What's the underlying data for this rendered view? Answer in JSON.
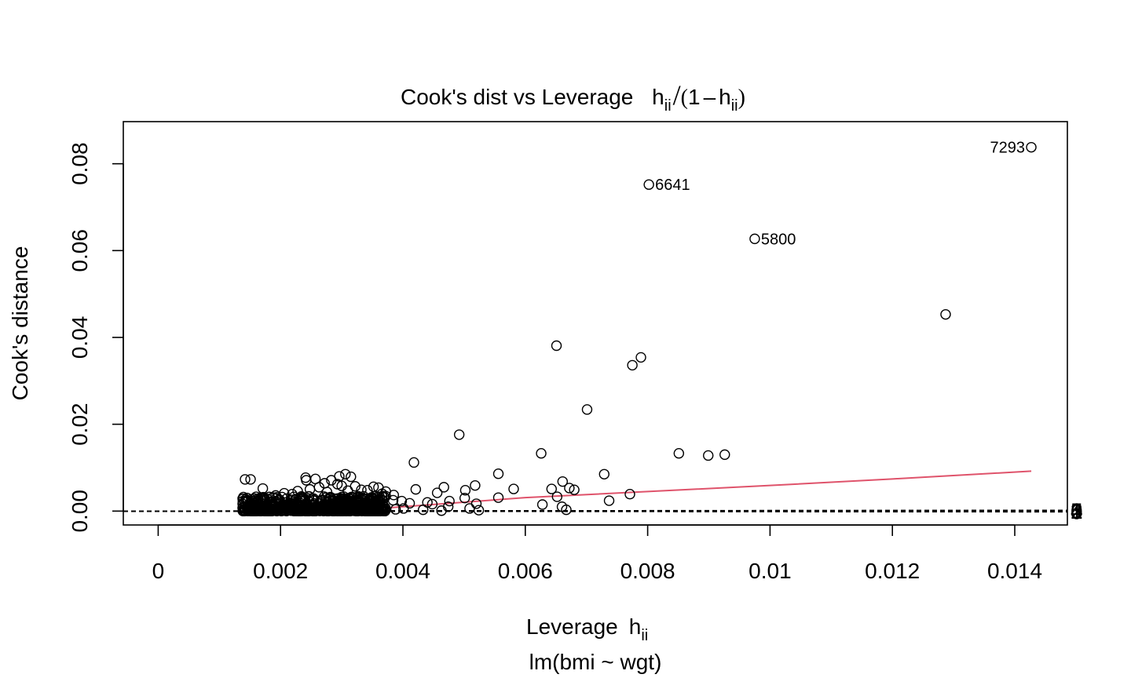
{
  "chart_data": {
    "type": "scatter",
    "title": "Cook's dist vs Leverage",
    "title_math": {
      "main": "h",
      "sub": "ii",
      "op": "/",
      "paren_left": "(",
      "one": "1",
      "minus": "–",
      "paren_right": ")"
    },
    "xlabel": "Leverage",
    "xlabel_math": {
      "main": "h",
      "sub": "ii"
    },
    "ylabel": "Cook's distance",
    "subtitle": "lm(bmi ~ wgt)",
    "xlim": [
      -0.00057,
      0.01486
    ],
    "ylim": [
      -0.0032,
      0.0897
    ],
    "x_ticks": [
      0,
      0.002,
      0.004,
      0.006,
      0.008,
      0.01,
      0.012,
      0.014
    ],
    "x_tick_labels": [
      "0",
      "0.002",
      "0.004",
      "0.006",
      "0.008",
      "0.01",
      "0.012",
      "0.014"
    ],
    "y_ticks": [
      0,
      0.02,
      0.04,
      0.06,
      0.08
    ],
    "y_tick_labels": [
      "0.00",
      "0.02",
      "0.04",
      "0.06",
      "0.08"
    ],
    "contour_levels": [
      0,
      1,
      2,
      3,
      4,
      5
    ],
    "contour_labels": [
      "0",
      "1",
      "2",
      "3",
      "4",
      "5"
    ],
    "contour_scale": 0.0025,
    "grid": false,
    "colors": {
      "points": "#000000",
      "contours": "#000000",
      "smoother": "#DF536B"
    },
    "labeled_points": [
      {
        "label": "7293",
        "x": 0.01427,
        "y": 0.0838
      },
      {
        "label": "6641",
        "x": 0.00802,
        "y": 0.0752
      },
      {
        "label": "5800",
        "x": 0.00975,
        "y": 0.0627
      }
    ],
    "points": [
      {
        "x": 0.01287,
        "y": 0.0453
      },
      {
        "x": 0.00651,
        "y": 0.0381
      },
      {
        "x": 0.00789,
        "y": 0.0354
      },
      {
        "x": 0.00775,
        "y": 0.0336
      },
      {
        "x": 0.00701,
        "y": 0.0234
      },
      {
        "x": 0.00492,
        "y": 0.0176
      },
      {
        "x": 0.00626,
        "y": 0.0133
      },
      {
        "x": 0.00851,
        "y": 0.0133
      },
      {
        "x": 0.00926,
        "y": 0.013
      },
      {
        "x": 0.00899,
        "y": 0.0128
      },
      {
        "x": 0.00418,
        "y": 0.0112
      },
      {
        "x": 0.00556,
        "y": 0.0086
      },
      {
        "x": 0.00729,
        "y": 0.0085
      },
      {
        "x": 0.00661,
        "y": 0.0068
      },
      {
        "x": 0.00518,
        "y": 0.0059
      },
      {
        "x": 0.00581,
        "y": 0.0051
      },
      {
        "x": 0.00643,
        "y": 0.0051
      },
      {
        "x": 0.00672,
        "y": 0.0053
      },
      {
        "x": 0.0068,
        "y": 0.0049
      },
      {
        "x": 0.00467,
        "y": 0.0055
      },
      {
        "x": 0.00456,
        "y": 0.0042
      },
      {
        "x": 0.00502,
        "y": 0.0048
      },
      {
        "x": 0.00421,
        "y": 0.005
      },
      {
        "x": 0.00771,
        "y": 0.0039
      },
      {
        "x": 0.00652,
        "y": 0.0033
      },
      {
        "x": 0.00556,
        "y": 0.0031
      },
      {
        "x": 0.00737,
        "y": 0.0024
      },
      {
        "x": 0.00628,
        "y": 0.0015
      },
      {
        "x": 0.0066,
        "y": 0.001
      },
      {
        "x": 0.00667,
        "y": 0.0003
      },
      {
        "x": 0.0052,
        "y": 0.0017
      },
      {
        "x": 0.00474,
        "y": 0.001
      },
      {
        "x": 0.00509,
        "y": 0.0006
      },
      {
        "x": 0.00524,
        "y": 0.0002
      },
      {
        "x": 0.00433,
        "y": 0.0003
      },
      {
        "x": 0.00463,
        "y": 0.0001
      },
      {
        "x": 0.00401,
        "y": 0.0006
      },
      {
        "x": 0.00388,
        "y": 0.0004
      },
      {
        "x": 0.00411,
        "y": 0.0018
      },
      {
        "x": 0.00448,
        "y": 0.0016
      },
      {
        "x": 0.00476,
        "y": 0.0023
      },
      {
        "x": 0.00501,
        "y": 0.003
      },
      {
        "x": 0.00352,
        "y": 0.0056
      },
      {
        "x": 0.0036,
        "y": 0.0054
      },
      {
        "x": 0.00342,
        "y": 0.0048
      },
      {
        "x": 0.00372,
        "y": 0.0045
      },
      {
        "x": 0.00366,
        "y": 0.004
      },
      {
        "x": 0.00385,
        "y": 0.0037
      },
      {
        "x": 0.00384,
        "y": 0.0025
      },
      {
        "x": 0.00398,
        "y": 0.0023
      },
      {
        "x": 0.0044,
        "y": 0.002
      },
      {
        "x": 0.00306,
        "y": 0.0085
      },
      {
        "x": 0.00315,
        "y": 0.0079
      },
      {
        "x": 0.00296,
        "y": 0.008
      },
      {
        "x": 0.00283,
        "y": 0.0071
      },
      {
        "x": 0.00272,
        "y": 0.0064
      },
      {
        "x": 0.00257,
        "y": 0.0074
      },
      {
        "x": 0.00241,
        "y": 0.0077
      },
      {
        "x": 0.00242,
        "y": 0.0071
      },
      {
        "x": 0.00228,
        "y": 0.0046
      },
      {
        "x": 0.00219,
        "y": 0.0039
      },
      {
        "x": 0.00206,
        "y": 0.0041
      },
      {
        "x": 0.00192,
        "y": 0.0036
      },
      {
        "x": 0.00178,
        "y": 0.0028
      },
      {
        "x": 0.00171,
        "y": 0.0052
      },
      {
        "x": 0.00142,
        "y": 0.0073
      },
      {
        "x": 0.00151,
        "y": 0.0073
      },
      {
        "x": 0.0016,
        "y": 0.0033
      },
      {
        "x": 0.00248,
        "y": 0.005
      },
      {
        "x": 0.00263,
        "y": 0.0055
      },
      {
        "x": 0.00276,
        "y": 0.0044
      },
      {
        "x": 0.00293,
        "y": 0.0062
      },
      {
        "x": 0.003,
        "y": 0.0058
      },
      {
        "x": 0.00322,
        "y": 0.0057
      },
      {
        "x": 0.00332,
        "y": 0.0049
      },
      {
        "x": 0.0031,
        "y": 0.0047
      }
    ],
    "dense_band": {
      "x": [
        0.00138,
        0.00372
      ],
      "y": [
        0.0,
        0.0035
      ]
    },
    "smoother": {
      "x": [
        0.00138,
        0.0038,
        0.006,
        0.008,
        0.01,
        0.012,
        0.01427
      ],
      "y": [
        0.0006,
        0.0008,
        0.0031,
        0.0045,
        0.0059,
        0.0074,
        0.0092
      ]
    }
  }
}
